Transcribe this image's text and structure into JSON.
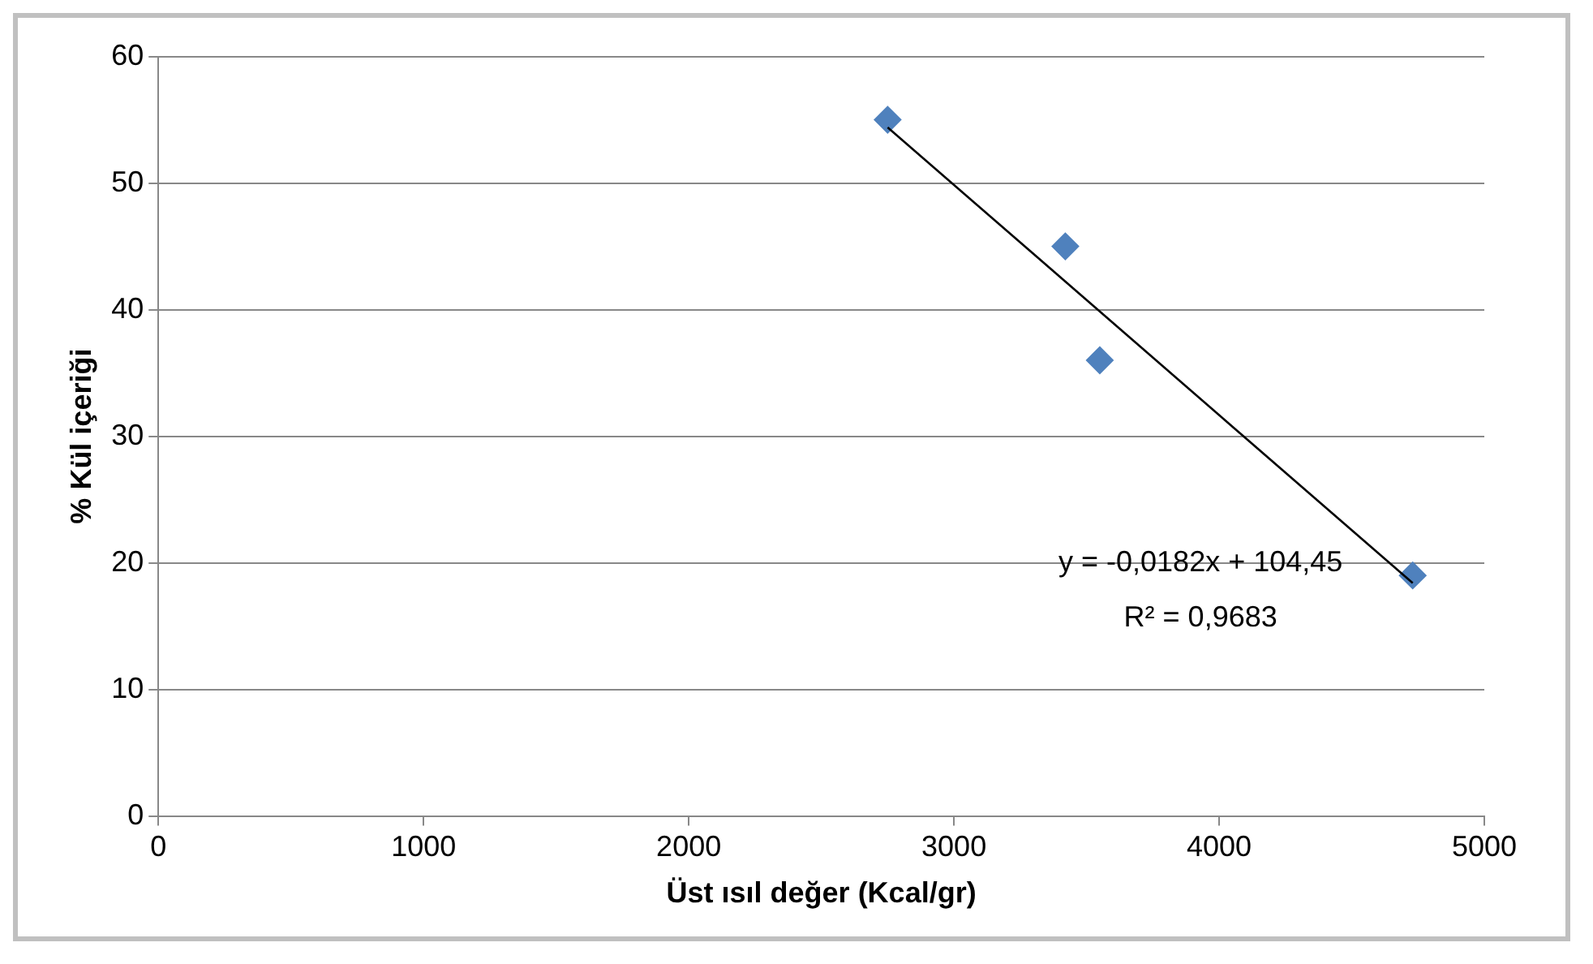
{
  "chart_data": {
    "type": "scatter",
    "xlabel": "Üst ısıl değer (Kcal/gr)",
    "ylabel": "% Kül içeriği",
    "series": [
      {
        "type": "scatter",
        "color": "#4f81bd",
        "marker": "diamond",
        "x": [
          2750,
          3420,
          3550,
          4730
        ],
        "values": [
          55,
          45,
          36,
          19
        ]
      },
      {
        "type": "line",
        "color": "#000000",
        "marker": "none",
        "x": [
          2750,
          4730
        ],
        "values": [
          54.4,
          18.4
        ]
      }
    ],
    "annotations": [
      "y = -0,0182x + 104,45",
      "R² = 0,9683"
    ],
    "xlim": [
      0,
      5000
    ],
    "xticks": [
      0,
      1000,
      2000,
      3000,
      4000,
      5000
    ],
    "ylim": [
      0,
      60
    ],
    "yticks": [
      0,
      10,
      20,
      30,
      40,
      50,
      60
    ],
    "grid": "y",
    "legend": false
  }
}
